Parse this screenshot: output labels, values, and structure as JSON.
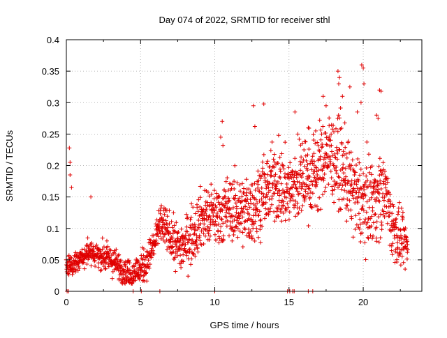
{
  "chart_data": {
    "type": "scatter",
    "title": "Day 074 of 2022, SRMTID for receiver sthl",
    "xlabel": "GPS time / hours",
    "ylabel": "SRMTID / TECUs",
    "xlim": [
      0,
      23.95
    ],
    "ylim": [
      0,
      0.4
    ],
    "x_ticks": [
      0,
      5,
      10,
      15,
      20
    ],
    "y_ticks": [
      0,
      0.05,
      0.1,
      0.15,
      0.2,
      0.25,
      0.3,
      0.35,
      0.4
    ],
    "x_tick_labels": [
      "0",
      "5",
      "10",
      "15",
      "20"
    ],
    "y_tick_labels": [
      "0",
      "0.05",
      "0.1",
      "0.15",
      "0.2",
      "0.25",
      "0.3",
      "0.35",
      "0.4"
    ],
    "grid": true,
    "marker": "+",
    "color": "#e00000",
    "series": [
      {
        "name": "SRMTID",
        "trend": [
          [
            0.0,
            0.04
          ],
          [
            0.5,
            0.045
          ],
          [
            1.0,
            0.05
          ],
          [
            1.5,
            0.06
          ],
          [
            2.0,
            0.06
          ],
          [
            2.5,
            0.055
          ],
          [
            3.0,
            0.05
          ],
          [
            3.5,
            0.04
          ],
          [
            4.0,
            0.03
          ],
          [
            4.5,
            0.03
          ],
          [
            5.0,
            0.035
          ],
          [
            5.5,
            0.05
          ],
          [
            6.0,
            0.08
          ],
          [
            6.3,
            0.11
          ],
          [
            6.8,
            0.095
          ],
          [
            7.5,
            0.07
          ],
          [
            8.0,
            0.075
          ],
          [
            8.5,
            0.09
          ],
          [
            9.0,
            0.115
          ],
          [
            10.0,
            0.12
          ],
          [
            11.0,
            0.13
          ],
          [
            12.0,
            0.13
          ],
          [
            12.5,
            0.125
          ],
          [
            13.0,
            0.15
          ],
          [
            14.0,
            0.17
          ],
          [
            15.0,
            0.16
          ],
          [
            16.0,
            0.18
          ],
          [
            17.0,
            0.19
          ],
          [
            17.5,
            0.22
          ],
          [
            18.0,
            0.21
          ],
          [
            18.5,
            0.2
          ],
          [
            19.0,
            0.17
          ],
          [
            19.5,
            0.15
          ],
          [
            20.0,
            0.14
          ],
          [
            21.0,
            0.15
          ],
          [
            21.5,
            0.16
          ],
          [
            22.0,
            0.1
          ],
          [
            22.5,
            0.08
          ],
          [
            23.0,
            0.07
          ]
        ],
        "spread": [
          [
            0.0,
            0.015
          ],
          [
            6.0,
            0.025
          ],
          [
            8.5,
            0.04
          ],
          [
            13.0,
            0.05
          ],
          [
            17.0,
            0.06
          ],
          [
            21.0,
            0.06
          ],
          [
            23.0,
            0.03
          ]
        ],
        "outliers": [
          {
            "x": 0.2,
            "y": 0.228
          },
          {
            "x": 0.25,
            "y": 0.205
          },
          {
            "x": 0.25,
            "y": 0.185
          },
          {
            "x": 0.35,
            "y": 0.165
          },
          {
            "x": 1.65,
            "y": 0.15
          },
          {
            "x": 6.2,
            "y": 0.128
          },
          {
            "x": 10.5,
            "y": 0.27
          },
          {
            "x": 10.4,
            "y": 0.245
          },
          {
            "x": 10.55,
            "y": 0.232
          },
          {
            "x": 12.6,
            "y": 0.295
          },
          {
            "x": 13.3,
            "y": 0.298
          },
          {
            "x": 12.7,
            "y": 0.262
          },
          {
            "x": 15.4,
            "y": 0.285
          },
          {
            "x": 16.3,
            "y": 0.26
          },
          {
            "x": 17.3,
            "y": 0.31
          },
          {
            "x": 17.5,
            "y": 0.295
          },
          {
            "x": 18.3,
            "y": 0.35
          },
          {
            "x": 18.4,
            "y": 0.34
          },
          {
            "x": 18.35,
            "y": 0.33
          },
          {
            "x": 18.6,
            "y": 0.31
          },
          {
            "x": 19.1,
            "y": 0.325
          },
          {
            "x": 19.6,
            "y": 0.285
          },
          {
            "x": 19.9,
            "y": 0.36
          },
          {
            "x": 20.0,
            "y": 0.355
          },
          {
            "x": 20.05,
            "y": 0.33
          },
          {
            "x": 19.85,
            "y": 0.3
          },
          {
            "x": 21.1,
            "y": 0.32
          },
          {
            "x": 21.2,
            "y": 0.318
          },
          {
            "x": 20.9,
            "y": 0.28
          },
          {
            "x": 21.0,
            "y": 0.275
          },
          {
            "x": 15.6,
            "y": 0.25
          },
          {
            "x": 14.3,
            "y": 0.248
          },
          {
            "x": 16.8,
            "y": 0.255
          }
        ],
        "zero_points_x": [
          0.05,
          0.15,
          4.5,
          5.05,
          6.3,
          10.0,
          14.9,
          15.05,
          15.25,
          15.35,
          16.3,
          16.6
        ],
        "point_count": 1800
      }
    ]
  }
}
